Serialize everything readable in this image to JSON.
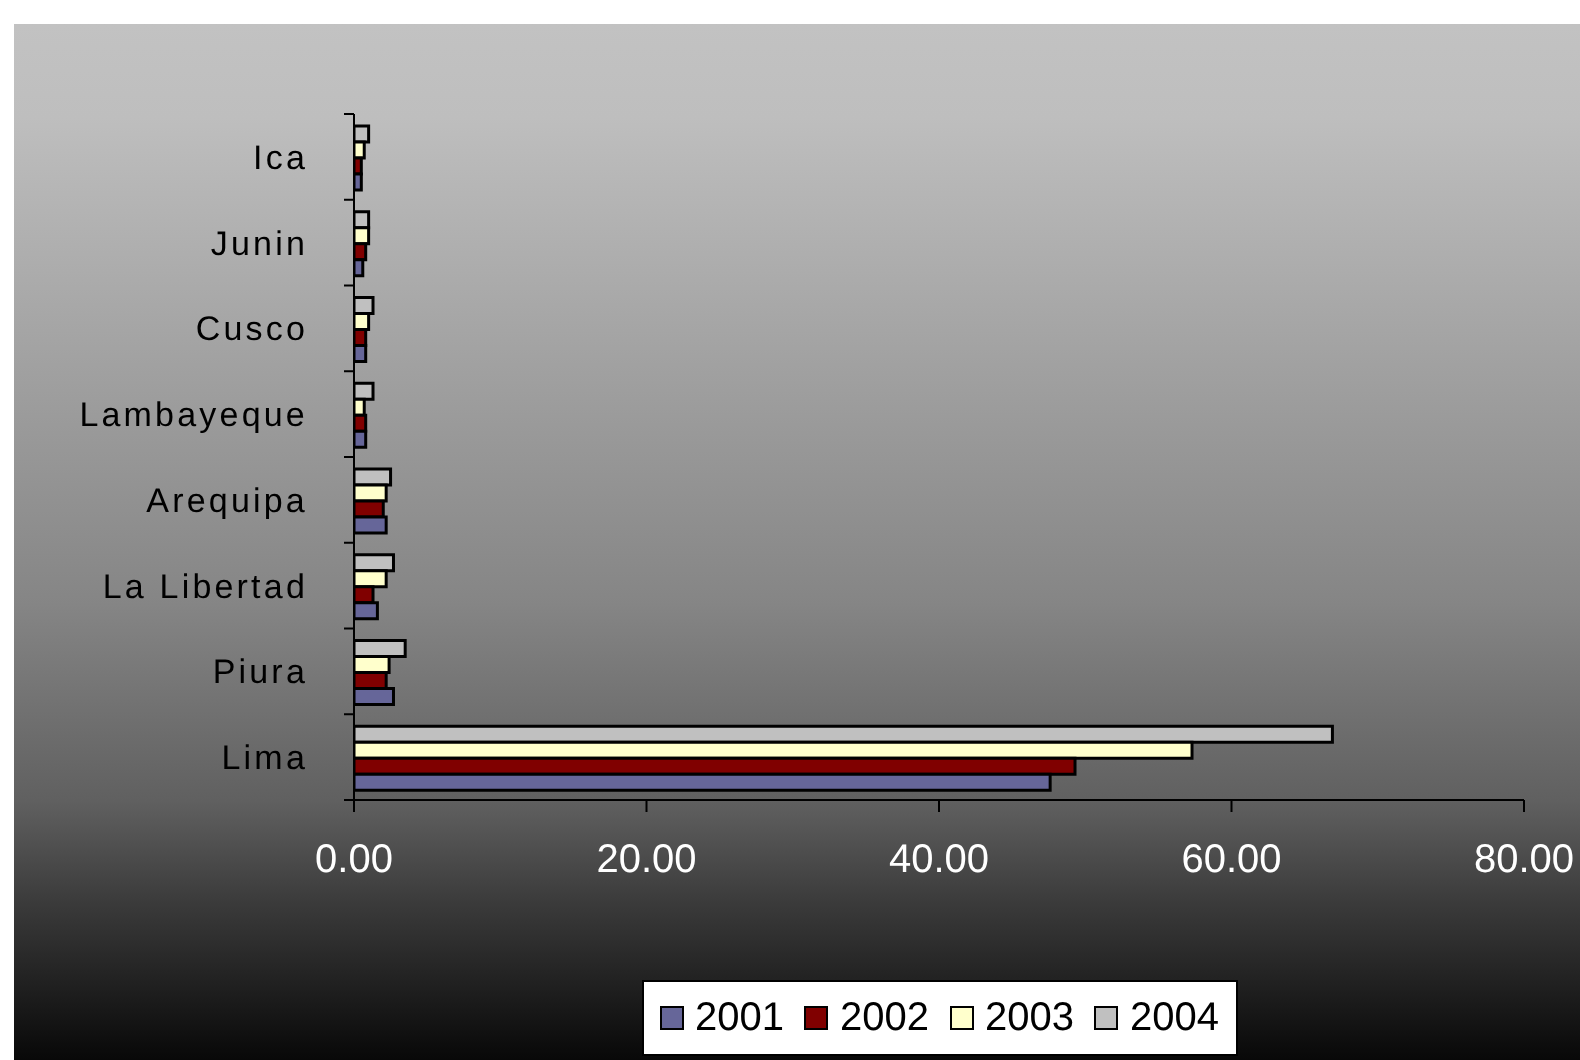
{
  "chart_data": {
    "type": "bar",
    "orientation": "horizontal",
    "categories": [
      "Ica",
      "Junin",
      "Cusco",
      "Lambayeque",
      "Arequipa",
      "La Libertad",
      "Piura",
      "Lima"
    ],
    "series": [
      {
        "name": "2001",
        "color": "#666699",
        "values": [
          0.5,
          0.6,
          0.8,
          0.8,
          2.2,
          1.6,
          2.7,
          47.6
        ]
      },
      {
        "name": "2002",
        "color": "#800000",
        "values": [
          0.5,
          0.8,
          0.8,
          0.8,
          2.0,
          1.3,
          2.2,
          49.3
        ]
      },
      {
        "name": "2003",
        "color": "#ffffcc",
        "values": [
          0.7,
          1.0,
          1.0,
          0.7,
          2.2,
          2.2,
          2.4,
          57.3
        ]
      },
      {
        "name": "2004",
        "color": "#c0c0c0",
        "values": [
          1.0,
          1.0,
          1.3,
          1.3,
          2.5,
          2.7,
          3.5,
          66.9
        ]
      }
    ],
    "xlim": [
      0,
      80
    ],
    "xticks": [
      {
        "value": 0,
        "label": "0.00"
      },
      {
        "value": 20,
        "label": "20.00"
      },
      {
        "value": 40,
        "label": "40.00"
      },
      {
        "value": 60,
        "label": "60.00"
      },
      {
        "value": 80,
        "label": "80.00"
      }
    ],
    "legend": "bottom"
  }
}
